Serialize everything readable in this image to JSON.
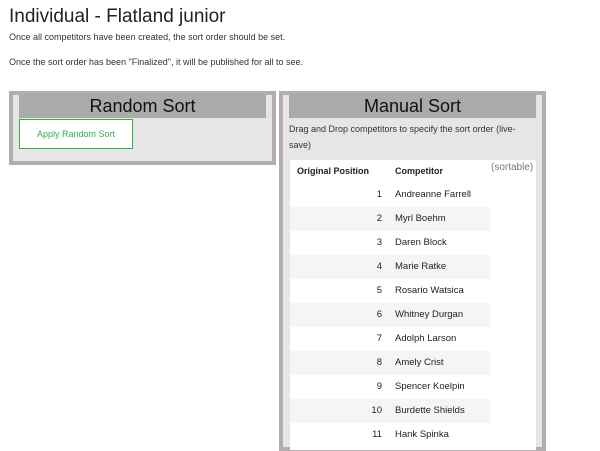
{
  "header": {
    "title": "Individual - Flatland junior",
    "notes": [
      "Once all competitors have been created, the sort order should be set.",
      "Once the sort order has been \"Finalized\", it will be published for all to see."
    ]
  },
  "random_sort": {
    "title": "Random Sort",
    "button": "Apply Random Sort"
  },
  "manual_sort": {
    "title": "Manual Sort",
    "description": "Drag and Drop competitors to specify the sort order (live-save)",
    "sortable_note": "(sortable)",
    "table": {
      "columns": [
        "Original Position",
        "Competitor"
      ],
      "rows": [
        [
          1,
          "Andreanne Farrell"
        ],
        [
          2,
          "Myrl Boehm"
        ],
        [
          3,
          "Daren Block"
        ],
        [
          4,
          "Marie Ratke"
        ],
        [
          5,
          "Rosario Watsica"
        ],
        [
          6,
          "Whitney Durgan"
        ],
        [
          7,
          "Adolph Larson"
        ],
        [
          8,
          "Amely Crist"
        ],
        [
          9,
          "Spencer Koelpin"
        ],
        [
          10,
          "Burdette Shields"
        ],
        [
          11,
          "Hank Spinka"
        ]
      ]
    }
  }
}
